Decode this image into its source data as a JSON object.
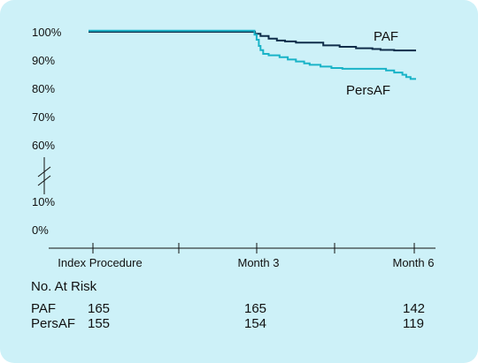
{
  "colors": {
    "background": "#cdf1f8",
    "paf": "#0f2d4a",
    "persaf": "#19b3c7",
    "axis": "#111111"
  },
  "chart_data": {
    "type": "line",
    "y_ticks": [
      "100%",
      "90%",
      "80%",
      "70%",
      "60%",
      "10%",
      "0%"
    ],
    "y_axis_break": "between 60% and 10%",
    "x_ticks": [
      "Index Procedure",
      "Month 3",
      "Month 6"
    ],
    "x_range_months": [
      0,
      6
    ],
    "ylim_upper_segment_percent": [
      55,
      100
    ],
    "ylim_lower_segment_percent": [
      0,
      10
    ],
    "series": [
      {
        "name": "PAF",
        "color": "#0f2d4a",
        "points": [
          [
            0,
            100
          ],
          [
            3.0,
            100
          ],
          [
            3.05,
            99.3
          ],
          [
            3.15,
            98.5
          ],
          [
            3.3,
            97.6
          ],
          [
            3.45,
            96.9
          ],
          [
            3.6,
            96.6
          ],
          [
            3.8,
            96.2
          ],
          [
            4.3,
            95.2
          ],
          [
            4.6,
            94.7
          ],
          [
            4.9,
            94.2
          ],
          [
            5.2,
            93.9
          ],
          [
            5.35,
            93.6
          ],
          [
            5.6,
            93.4
          ],
          [
            6.0,
            93.4
          ]
        ]
      },
      {
        "name": "PersAF",
        "color": "#19b3c7",
        "points": [
          [
            0,
            100.4
          ],
          [
            3.0,
            100.4
          ],
          [
            3.04,
            99
          ],
          [
            3.08,
            97.2
          ],
          [
            3.12,
            95
          ],
          [
            3.15,
            93.5
          ],
          [
            3.2,
            92.2
          ],
          [
            3.3,
            91.7
          ],
          [
            3.5,
            91
          ],
          [
            3.65,
            90.2
          ],
          [
            3.8,
            89.5
          ],
          [
            3.95,
            88.8
          ],
          [
            4.05,
            88.3
          ],
          [
            4.25,
            87.7
          ],
          [
            4.45,
            87.2
          ],
          [
            4.65,
            86.9
          ],
          [
            5.35,
            86.9
          ],
          [
            5.45,
            86.3
          ],
          [
            5.6,
            85.6
          ],
          [
            5.75,
            84.8
          ],
          [
            5.82,
            84
          ],
          [
            5.9,
            83.3
          ],
          [
            6.0,
            83.3
          ]
        ]
      }
    ]
  },
  "number_at_risk": {
    "title": "No. At Risk",
    "rows": [
      {
        "name": "PAF",
        "values": [
          "165",
          "165",
          "142"
        ]
      },
      {
        "name": "PersAF",
        "values": [
          "155",
          "154",
          "119"
        ]
      }
    ]
  }
}
